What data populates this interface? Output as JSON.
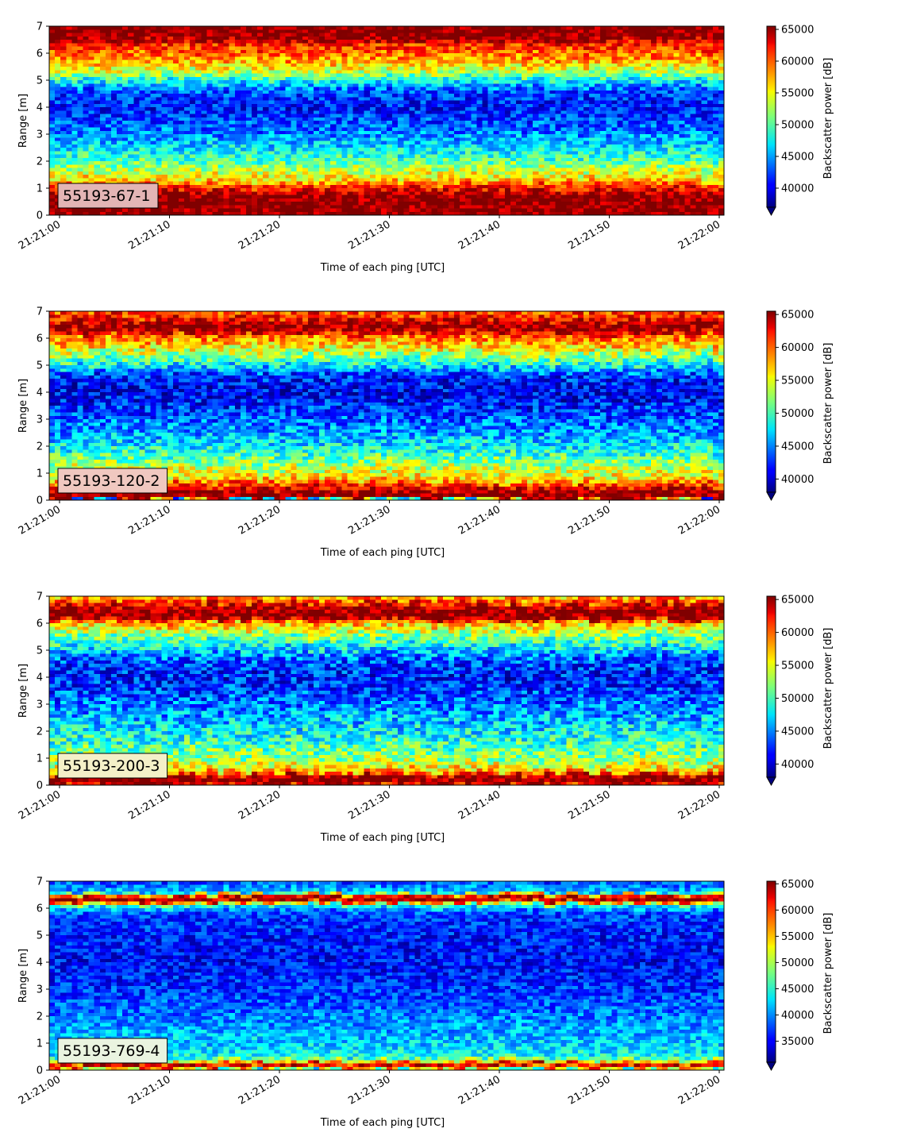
{
  "figure": {
    "colormap": "jet",
    "xlabel": "Time of each ping [UTC]",
    "ylabel": "Range [m]",
    "colorbar_label": "Backscatter power [dB]"
  },
  "chart_data": [
    {
      "type": "heatmap",
      "panel_label": "55193-67-1",
      "panel_label_bg": "#e3b5b5",
      "xlabel": "Time of each ping [UTC]",
      "ylabel": "Range [m]",
      "x_ticks": [
        "21:21:00",
        "21:21:10",
        "21:21:20",
        "21:21:30",
        "21:21:40",
        "21:21:50",
        "21:22:00"
      ],
      "x_range": [
        "21:21:00",
        "21:22:00"
      ],
      "y_ticks": [
        0,
        1,
        2,
        3,
        4,
        5,
        6,
        7
      ],
      "ylim": [
        0,
        7
      ],
      "colorbar": {
        "label": "Backscatter power [dB]",
        "ticks": [
          40000,
          45000,
          50000,
          55000,
          60000,
          65000
        ],
        "range": [
          37000,
          65500
        ],
        "extend": "min"
      },
      "profile": {
        "range_m": [
          0,
          0.15,
          0.3,
          0.7,
          1.05,
          1.3,
          1.7,
          2.0,
          2.5,
          3.2,
          4.0,
          4.6,
          5.0,
          5.3,
          5.8,
          6.3,
          6.6,
          7.0
        ],
        "power": [
          65500,
          65500,
          65500,
          65500,
          61000,
          56000,
          53000,
          50000,
          47000,
          43500,
          41000,
          42500,
          48000,
          53000,
          58000,
          61000,
          65500,
          65500
        ]
      },
      "noise": 3500
    },
    {
      "type": "heatmap",
      "panel_label": "55193-120-2",
      "panel_label_bg": "#f0c8c0",
      "xlabel": "Time of each ping [UTC]",
      "ylabel": "Range [m]",
      "x_ticks": [
        "21:21:00",
        "21:21:10",
        "21:21:20",
        "21:21:30",
        "21:21:40",
        "21:21:50",
        "21:22:00"
      ],
      "x_range": [
        "21:21:00",
        "21:22:00"
      ],
      "y_ticks": [
        0,
        1,
        2,
        3,
        4,
        5,
        6,
        7
      ],
      "ylim": [
        0,
        7
      ],
      "colorbar": {
        "label": "Backscatter power [dB]",
        "ticks": [
          40000,
          45000,
          50000,
          55000,
          60000,
          65000
        ],
        "range": [
          38000,
          65500
        ],
        "extend": "min"
      },
      "profile": {
        "range_m": [
          0,
          0.1,
          0.25,
          0.5,
          0.8,
          1.2,
          1.6,
          2.0,
          2.6,
          3.3,
          4.0,
          4.6,
          5.0,
          5.5,
          6.0,
          6.4,
          6.7,
          7.0
        ],
        "power": [
          44000,
          65500,
          65500,
          62000,
          56000,
          53500,
          50500,
          48000,
          45500,
          43000,
          41000,
          42500,
          48000,
          54000,
          58500,
          65500,
          62000,
          60000
        ]
      },
      "noise": 3800
    },
    {
      "type": "heatmap",
      "panel_label": "55193-200-3",
      "panel_label_bg": "#f4f0c8",
      "xlabel": "Time of each ping [UTC]",
      "ylabel": "Range [m]",
      "x_ticks": [
        "21:21:00",
        "21:21:10",
        "21:21:20",
        "21:21:30",
        "21:21:40",
        "21:21:50",
        "21:22:00"
      ],
      "x_range": [
        "21:21:00",
        "21:22:00"
      ],
      "y_ticks": [
        0,
        1,
        2,
        3,
        4,
        5,
        6,
        7
      ],
      "ylim": [
        0,
        7
      ],
      "colorbar": {
        "label": "Backscatter power [dB]",
        "ticks": [
          40000,
          45000,
          50000,
          55000,
          60000,
          65000
        ],
        "range": [
          38000,
          65500
        ],
        "extend": "min"
      },
      "profile": {
        "range_m": [
          0,
          0.1,
          0.3,
          0.5,
          0.9,
          1.4,
          2.0,
          2.7,
          3.4,
          4.0,
          4.6,
          5.0,
          5.5,
          6.0,
          6.2,
          6.5,
          6.8,
          7.0
        ],
        "power": [
          62000,
          65500,
          65500,
          57000,
          53000,
          50500,
          48000,
          45500,
          43500,
          42000,
          43500,
          47000,
          51500,
          57000,
          65500,
          65500,
          60000,
          57000
        ]
      },
      "noise": 4000
    },
    {
      "type": "heatmap",
      "panel_label": "55193-769-4",
      "panel_label_bg": "#eaf4e0",
      "xlabel": "Time of each ping [UTC]",
      "ylabel": "Range [m]",
      "x_ticks": [
        "21:21:00",
        "21:21:10",
        "21:21:20",
        "21:21:30",
        "21:21:40",
        "21:21:50",
        "21:22:00"
      ],
      "x_range": [
        "21:21:00",
        "21:22:00"
      ],
      "y_ticks": [
        0,
        1,
        2,
        3,
        4,
        5,
        6,
        7
      ],
      "ylim": [
        0,
        7
      ],
      "colorbar": {
        "label": "Backscatter power [dB]",
        "ticks": [
          35000,
          40000,
          45000,
          50000,
          55000,
          60000,
          65000
        ],
        "range": [
          31000,
          65500
        ],
        "extend": "min"
      },
      "profile": {
        "range_m": [
          0,
          0.12,
          0.2,
          0.3,
          0.5,
          0.9,
          1.5,
          2.2,
          3.0,
          4.0,
          5.0,
          5.8,
          6.1,
          6.3,
          6.45,
          6.6,
          7.0
        ],
        "power": [
          44000,
          58000,
          65500,
          54000,
          44500,
          42500,
          41000,
          39000,
          37000,
          35500,
          36000,
          37500,
          44000,
          65500,
          62000,
          42000,
          38000
        ]
      },
      "noise": 3800
    }
  ]
}
